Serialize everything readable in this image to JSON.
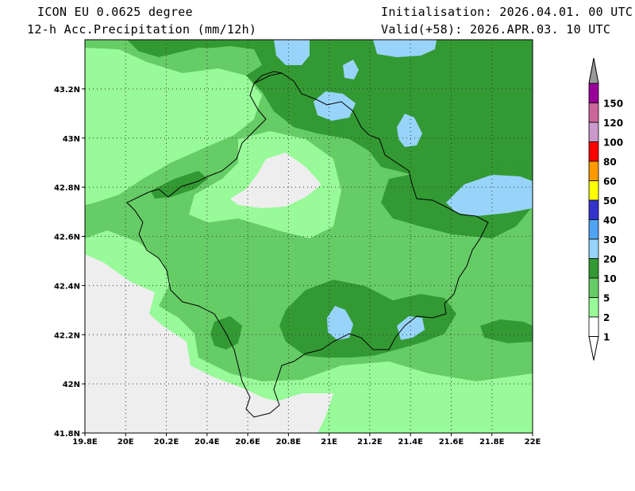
{
  "header": {
    "model": "ICON EU 0.0625 degree",
    "field": "12-h Acc.Precipitation (mm/12h)",
    "init": "Initialisation: 2026.04.01. 00 UTC",
    "valid": "Valid(+58): 2026.APR.03. 10 UTC"
  },
  "axes": {
    "lon_ticks": [
      "19.8E",
      "20E",
      "20.2E",
      "20.4E",
      "20.6E",
      "20.8E",
      "21E",
      "21.2E",
      "21.4E",
      "21.6E",
      "21.8E",
      "22E"
    ],
    "lat_ticks": [
      "41.8N",
      "42N",
      "42.2N",
      "42.4N",
      "42.6N",
      "42.8N",
      "43N",
      "43.2N"
    ],
    "lon_range": [
      19.8,
      22.0
    ],
    "lat_range": [
      41.8,
      43.4
    ]
  },
  "legend": {
    "labels": [
      "1",
      "2",
      "5",
      "10",
      "20",
      "30",
      "40",
      "50",
      "60",
      "80",
      "100",
      "120",
      "150"
    ],
    "colors": [
      "#ffffff",
      "#98fa98",
      "#66cc66",
      "#339933",
      "#98d4fa",
      "#4fa3f2",
      "#3333cc",
      "#ffff00",
      "#ff9900",
      "#ff0000",
      "#cc99cc",
      "#cc6699",
      "#990099"
    ],
    "top_arrow_color": "#999999"
  },
  "colors": {
    "no_precip": "#eeeeee",
    "lt2": "#98fa98",
    "lt5": "#66cc66",
    "lt10": "#339933",
    "lt20": "#98d4fa"
  }
}
